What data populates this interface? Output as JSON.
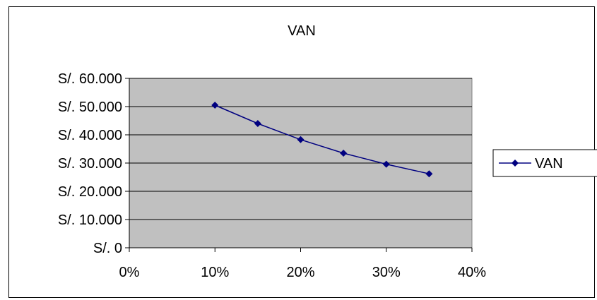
{
  "chart_data": {
    "type": "line",
    "title": "VAN",
    "xlabel": "",
    "ylabel": "",
    "x_ticks": [
      "0%",
      "10%",
      "20%",
      "30%",
      "40%"
    ],
    "x_tick_values": [
      0,
      10,
      20,
      30,
      40
    ],
    "y_ticks": [
      "S/. 0",
      "S/. 10.000",
      "S/. 20.000",
      "S/. 30.000",
      "S/. 40.000",
      "S/. 50.000",
      "S/. 60.000"
    ],
    "y_tick_values": [
      0,
      10000,
      20000,
      30000,
      40000,
      50000,
      60000
    ],
    "xlim": [
      0,
      40
    ],
    "ylim": [
      0,
      60000
    ],
    "grid": "horizontal",
    "plot_background": "#c0c0c0",
    "legend_position": "right",
    "series": [
      {
        "name": "VAN",
        "color": "#000080",
        "marker": "diamond",
        "x": [
          10,
          15,
          20,
          25,
          30,
          35
        ],
        "values": [
          50500,
          44000,
          38300,
          33500,
          29600,
          26200
        ]
      }
    ]
  }
}
